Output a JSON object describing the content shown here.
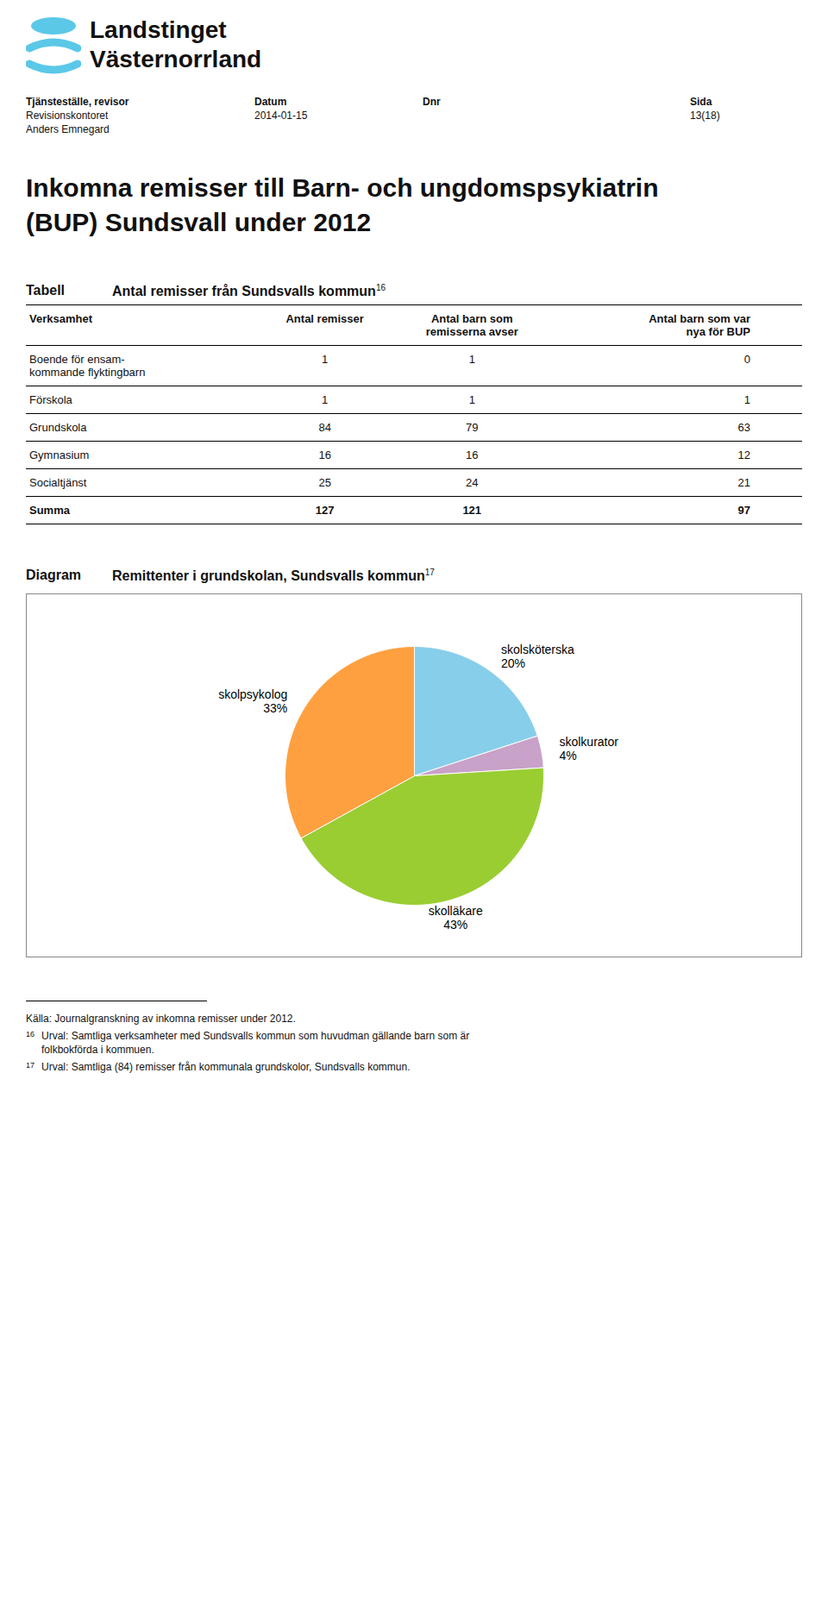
{
  "chart_data": [
    {
      "type": "page",
      "title": "Inkomna remisser till Barn- och ungdomspsykiatrin\n(BUP) Sundsvall under 2012",
      "color": "#5BC8E8",
      "annotations": [
        "Landstinget",
        "Västernorrland"
      ],
      "header": [
        {
          "label": "Tjänsteställe, revisor",
          "lines": [
            "Revisionskontoret",
            "Anders Emnegard"
          ]
        },
        {
          "label": "Datum",
          "lines": [
            "2014-01-15"
          ]
        },
        {
          "label": "Dnr"
        },
        {
          "label": "Sida",
          "lines": [
            "13(18)"
          ]
        }
      ],
      "source": "Källa: Journalgranskning av inkomna remisser under 2012.",
      "footnotes": [
        {
          "label": "16",
          "lines": [
            "Urval: Samtliga verksamheter med Sundsvalls kommun som huvudman gällande barn som är",
            "folkbokförda i kommuen."
          ]
        },
        {
          "label": "17",
          "lines": [
            "Urval: Samtliga (84) remisser från kommunala grundskolor, Sundsvalls kommun."
          ]
        }
      ]
    },
    {
      "type": "table",
      "label": "Tabell",
      "title": "Antal remisser från Sundsvalls kommun",
      "footnote": "16",
      "columns": [
        "Verksamhet",
        "Antal remisser",
        "Antal barn som\nremisserna avser",
        "Antal barn som var\nnya för BUP"
      ],
      "rows": [
        [
          "Boende för ensam-\nkommande flyktingbarn",
          "1",
          "1",
          "0"
        ],
        [
          "Förskola",
          "1",
          "1",
          "1"
        ],
        [
          "Grundskola",
          "84",
          "79",
          "63"
        ],
        [
          "Gymnasium",
          "16",
          "16",
          "12"
        ],
        [
          "Socialtjänst",
          "25",
          "24",
          "21"
        ],
        [
          "Summa",
          "127",
          "121",
          "97"
        ]
      ]
    },
    {
      "type": "pie",
      "label": "Diagram",
      "title": "Remittenter i grundskolan, Sundsvalls kommun",
      "footnote": "17",
      "categories": [
        "skolsköterska",
        "skolkurator",
        "skolläkare",
        "skolpsykolog"
      ],
      "values": [
        20,
        4,
        43,
        33
      ],
      "value_labels": [
        "20%",
        "4%",
        "43%",
        "33%"
      ],
      "colors": [
        "#87CEEB",
        "#C8A2C8",
        "#9ACD32",
        "#FFA040"
      ],
      "data_labels": true
    }
  ]
}
